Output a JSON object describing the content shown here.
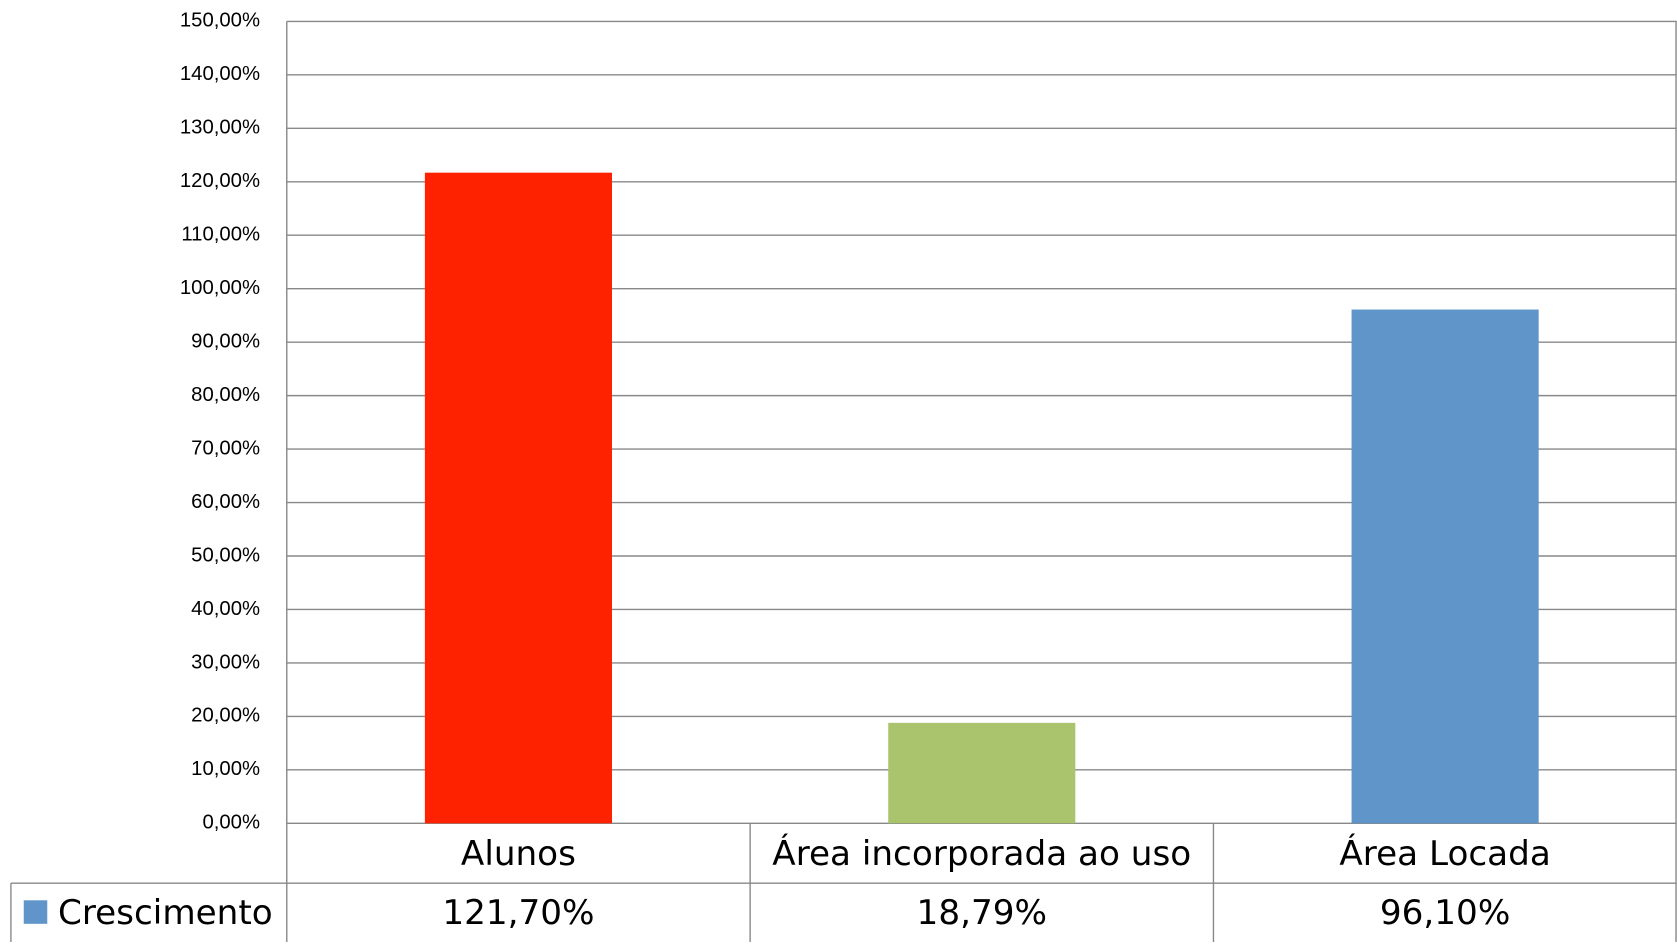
{
  "chart_data": {
    "type": "bar",
    "categories": [
      "Alunos",
      "Área incorporada ao uso",
      "Área Locada"
    ],
    "series": [
      {
        "name": "Crescimento",
        "color": "#6095c9",
        "colors": [
          "#ff2200",
          "#a9c46c",
          "#6095c9"
        ],
        "values": [
          121.7,
          18.79,
          96.1
        ],
        "value_labels": [
          "121,70%",
          "18,79%",
          "96,10%"
        ]
      }
    ],
    "ylim": [
      0,
      150
    ],
    "yticks": [
      {
        "value": 0,
        "label": "0,00%"
      },
      {
        "value": 10,
        "label": "10,00%"
      },
      {
        "value": 20,
        "label": "20,00%"
      },
      {
        "value": 30,
        "label": "30,00%"
      },
      {
        "value": 40,
        "label": "40,00%"
      },
      {
        "value": 50,
        "label": "50,00%"
      },
      {
        "value": 60,
        "label": "60,00%"
      },
      {
        "value": 70,
        "label": "70,00%"
      },
      {
        "value": 80,
        "label": "80,00%"
      },
      {
        "value": 90,
        "label": "90,00%"
      },
      {
        "value": 100,
        "label": "100,00%"
      },
      {
        "value": 110,
        "label": "110,00%"
      },
      {
        "value": 120,
        "label": "120,00%"
      },
      {
        "value": 130,
        "label": "130,00%"
      },
      {
        "value": 140,
        "label": "140,00%"
      },
      {
        "value": 150,
        "label": "150,00%"
      }
    ],
    "grid": true
  }
}
